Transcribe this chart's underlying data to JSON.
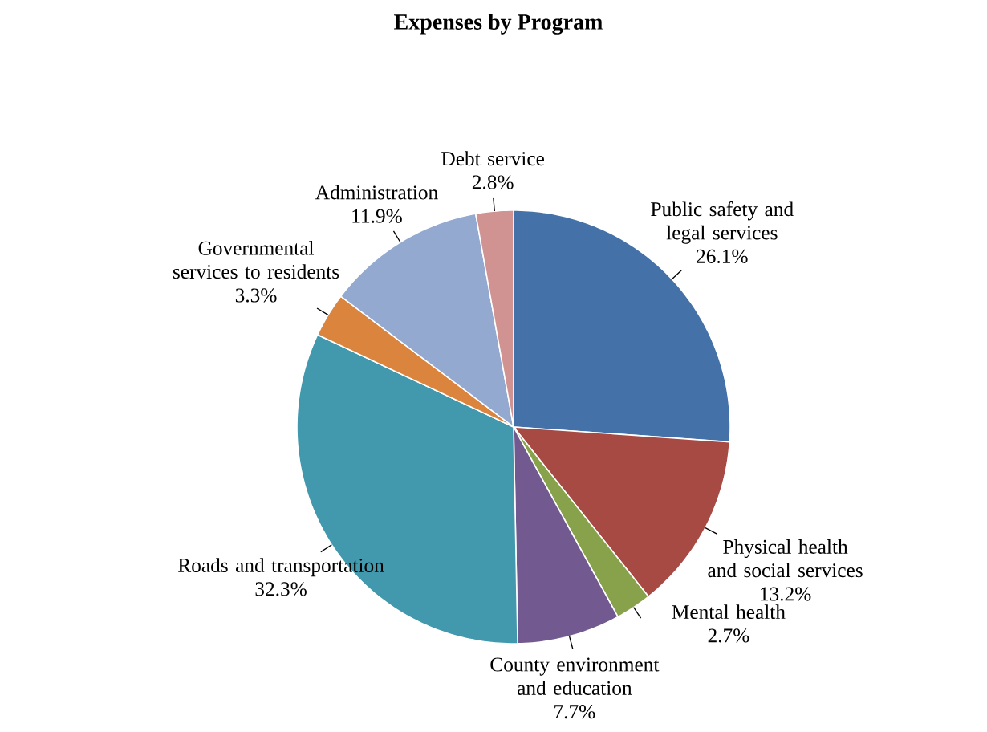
{
  "chart_data": {
    "type": "pie",
    "title": "Expenses by Program",
    "categories": [
      "Public safety and legal services",
      "Physical health and social services",
      "Mental health",
      "County environment and education",
      "Roads and transportation",
      "Governmental services to residents",
      "Administration",
      "Debt service"
    ],
    "values": [
      26.1,
      13.2,
      2.7,
      7.7,
      32.3,
      3.3,
      11.9,
      2.8
    ],
    "value_labels": [
      "26.1%",
      "13.2%",
      "2.7%",
      "7.7%",
      "32.3%",
      "3.3%",
      "11.9%",
      "2.8%"
    ],
    "colors": [
      "#4472a8",
      "#a84a44",
      "#87a24b",
      "#72598f",
      "#4299ae",
      "#db843d",
      "#93a9cf",
      "#d09392"
    ]
  }
}
